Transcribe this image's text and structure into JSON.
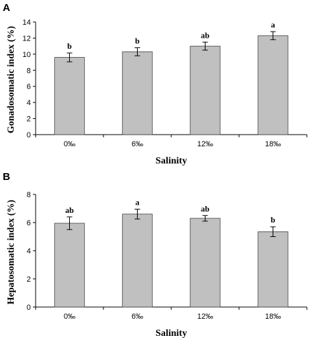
{
  "chart_data": [
    {
      "type": "bar",
      "panel": "A",
      "categories": [
        "0‰",
        "6‰",
        "12‰",
        "18‰"
      ],
      "values": [
        9.6,
        10.3,
        11.0,
        12.3
      ],
      "errors": [
        0.55,
        0.5,
        0.5,
        0.5
      ],
      "significance": [
        "b",
        "b",
        "ab",
        "a"
      ],
      "xlabel": "Salinity",
      "ylabel": "Gonadosomatic index (%)",
      "ylim": [
        0,
        14
      ],
      "yticks": [
        0,
        2,
        4,
        6,
        8,
        10,
        12,
        14
      ],
      "grid": false,
      "bar_color": "#c0c0c0"
    },
    {
      "type": "bar",
      "panel": "B",
      "categories": [
        "0‰",
        "6‰",
        "12‰",
        "18‰"
      ],
      "values": [
        5.95,
        6.6,
        6.3,
        5.35
      ],
      "errors": [
        0.45,
        0.35,
        0.2,
        0.35
      ],
      "significance": [
        "ab",
        "a",
        "ab",
        "b"
      ],
      "xlabel": "Salinity",
      "ylabel": "Hepatosomatic index (%)",
      "ylim": [
        0,
        8
      ],
      "yticks": [
        0,
        2,
        4,
        6,
        8
      ],
      "grid": false,
      "bar_color": "#c0c0c0"
    }
  ]
}
